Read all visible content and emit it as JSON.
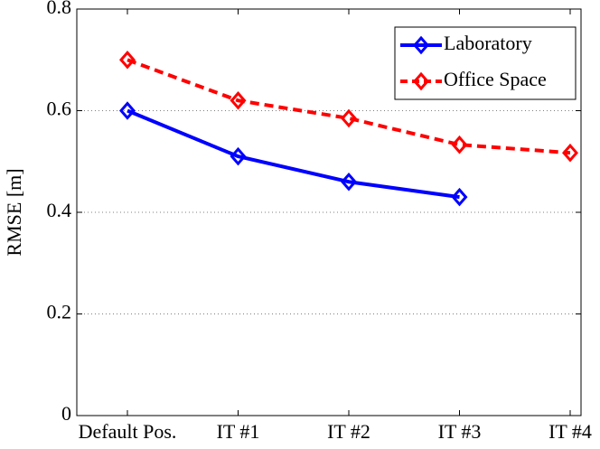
{
  "chart_data": {
    "type": "line",
    "ylabel": "RMSE [m]",
    "categories": [
      "Default Pos.",
      "IT #1",
      "IT #2",
      "IT #3",
      "IT #4"
    ],
    "series": [
      {
        "name": "Laboratory",
        "color": "#0000ff",
        "dash": false,
        "values": [
          0.6,
          0.51,
          0.46,
          0.43,
          null
        ]
      },
      {
        "name": "Office Space",
        "color": "#ff0000",
        "dash": true,
        "values": [
          0.7,
          0.62,
          0.585,
          0.533,
          0.517
        ]
      }
    ],
    "ylim": [
      0,
      0.8
    ],
    "yticks": [
      0,
      0.2,
      0.4,
      0.6,
      0.8
    ],
    "grid": true,
    "legend": "upper right"
  }
}
